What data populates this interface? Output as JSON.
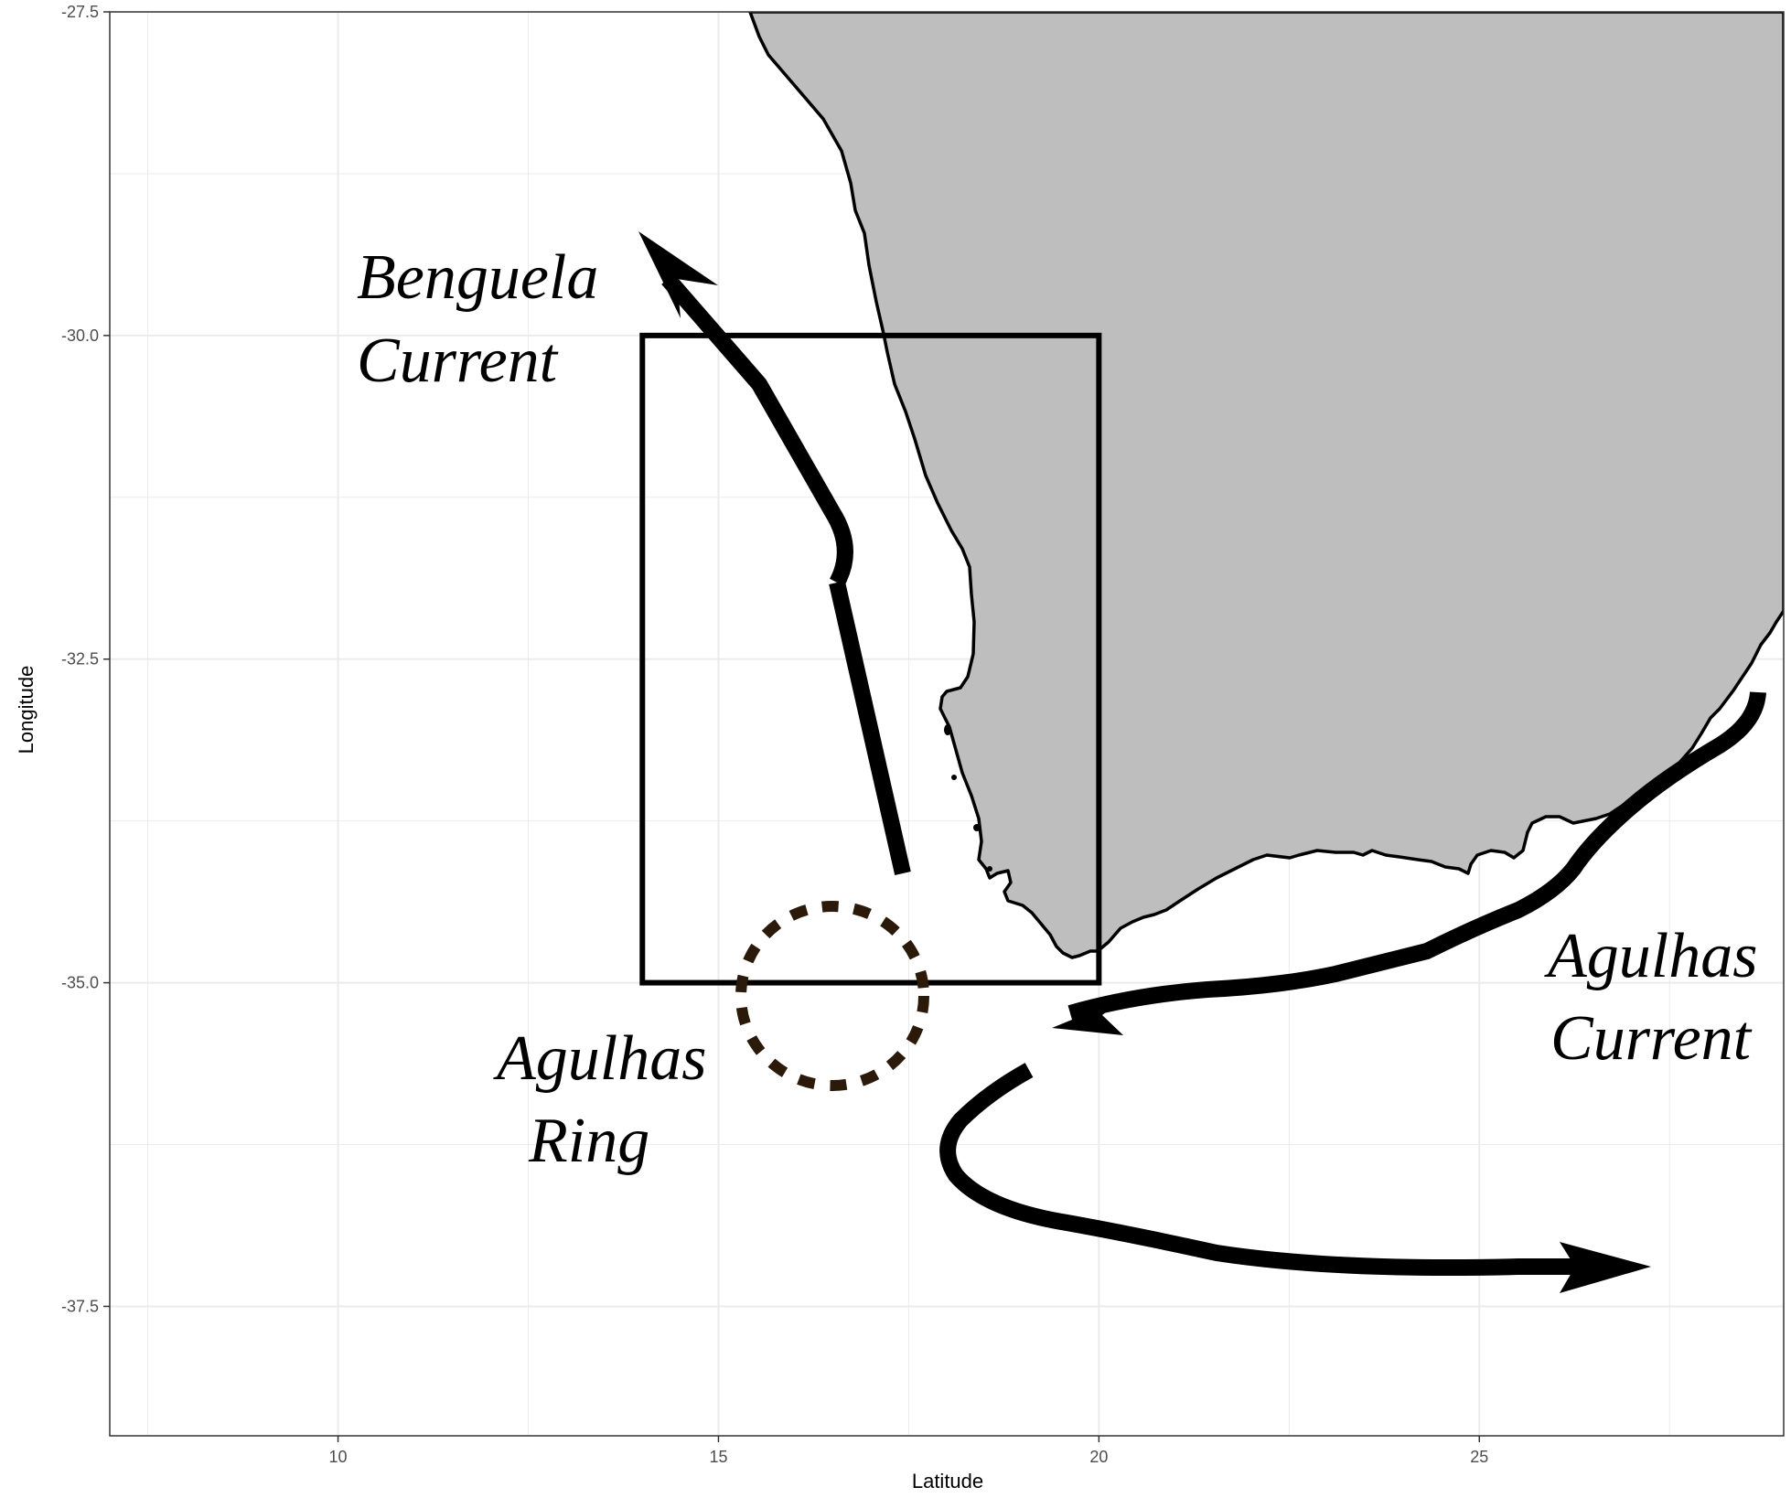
{
  "map": {
    "x_axis_title": "Latitude",
    "y_axis_title": "Longitude",
    "xlim": [
      7,
      29
    ],
    "ylim": [
      -38.5,
      -27.5
    ],
    "x_ticks": [
      {
        "value": 10,
        "label": "10"
      },
      {
        "value": 15,
        "label": "15"
      },
      {
        "value": 20,
        "label": "20"
      },
      {
        "value": 25,
        "label": "25"
      }
    ],
    "y_ticks": [
      {
        "value": -27.5,
        "label": "-27.5"
      },
      {
        "value": -30.0,
        "label": "-30.0"
      },
      {
        "value": -32.5,
        "label": "-32.5"
      },
      {
        "value": -35.0,
        "label": "-35.0"
      },
      {
        "value": -37.5,
        "label": "-37.5"
      }
    ],
    "grid": true,
    "study_box": {
      "x_min": 14,
      "x_max": 20,
      "y_min": -35.0,
      "y_max": -30.0
    },
    "labels": {
      "benguela": [
        "Benguela",
        "Current"
      ],
      "agulhas_current": [
        "Agulhas",
        "Current"
      ],
      "agulhas_ring": [
        "Agulhas",
        "Ring"
      ]
    },
    "colors": {
      "land": "#bebebe",
      "coastline": "#000000",
      "arrows": "#000000",
      "ring": "#2b1a0a",
      "grid": "#ebebeb"
    }
  }
}
